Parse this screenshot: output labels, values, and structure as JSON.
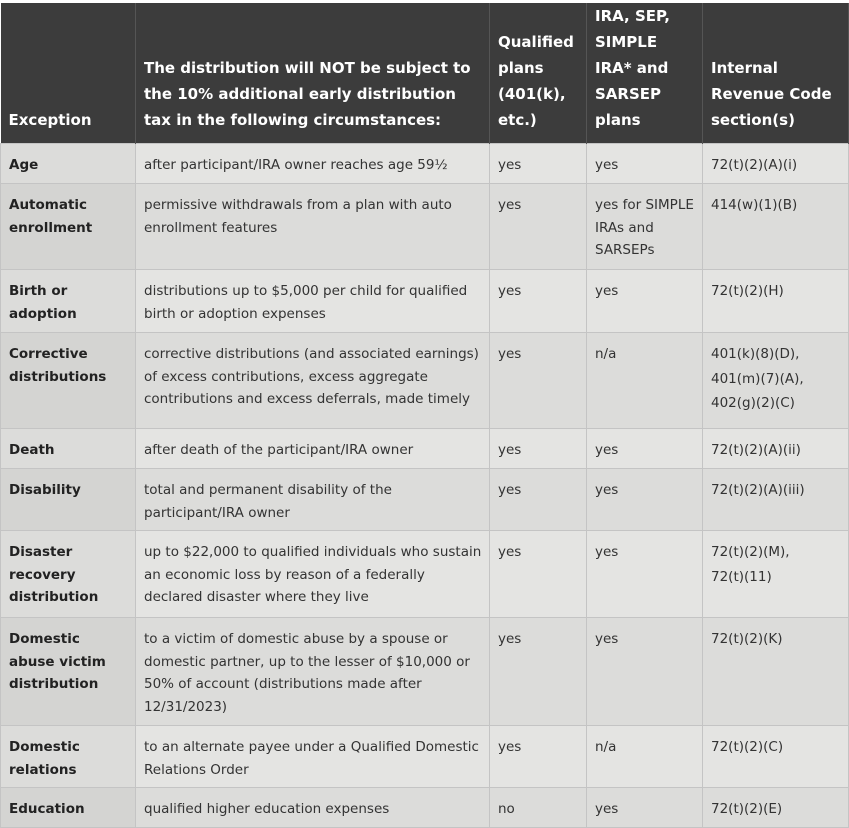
{
  "table": {
    "header": [
      "Exception",
      "The distribution will NOT be subject to the 10% additional early distribution tax in the following circumstances:",
      "Qualified plans (401(k), etc.)",
      "IRA, SEP, SIMPLE IRA* and SARSEP plans",
      "Internal Revenue Code section(s)"
    ],
    "rows": [
      [
        "Age",
        "after participant/IRA owner reaches age 59½",
        "yes",
        "yes",
        "72(t)(2)(A)(i)"
      ],
      [
        "Automatic enrollment",
        "permissive withdrawals from a plan with auto enrollment features",
        "yes",
        "yes for SIMPLE IRAs and SARSEPs",
        "414(w)(1)(B)"
      ],
      [
        "Birth or adoption",
        "distributions up to $5,000 per child for qualified birth or adoption expenses",
        "yes",
        "yes",
        "72(t)(2)(H)"
      ],
      [
        "Corrective distributions",
        "corrective distributions (and associated earnings) of excess contributions, excess aggregate contributions and excess deferrals, made timely",
        "yes",
        "n/a",
        [
          "401(k)(8)(D),",
          "401(m)(7)(A),",
          "402(g)(2)(C)"
        ]
      ],
      [
        "Death",
        "after death of the participant/IRA owner",
        "yes",
        "yes",
        "72(t)(2)(A)(ii)"
      ],
      [
        "Disability",
        "total and permanent disability of the participant/IRA owner",
        "yes",
        "yes",
        "72(t)(2)(A)(iii)"
      ],
      [
        "Disaster recovery distribution",
        "up to $22,000 to qualified individuals who sustain an economic loss by reason of a federally declared disaster where they live",
        "yes",
        "yes",
        [
          "72(t)(2)(M),",
          "72(t)(11)"
        ]
      ],
      [
        "Domestic abuse victim distribution",
        "to a victim of domestic abuse by a spouse or domestic partner, up to the lesser of $10,000 or 50% of account (distributions made after 12/31/2023)",
        "yes",
        "yes",
        "72(t)(2)(K)"
      ],
      [
        "Domestic relations",
        "to an alternate payee under a Qualified Domestic Relations Order",
        "yes",
        "n/a",
        "72(t)(2)(C)"
      ],
      [
        "Education",
        "qualified higher education expenses",
        "no",
        "yes",
        "72(t)(2)(E)"
      ]
    ]
  }
}
